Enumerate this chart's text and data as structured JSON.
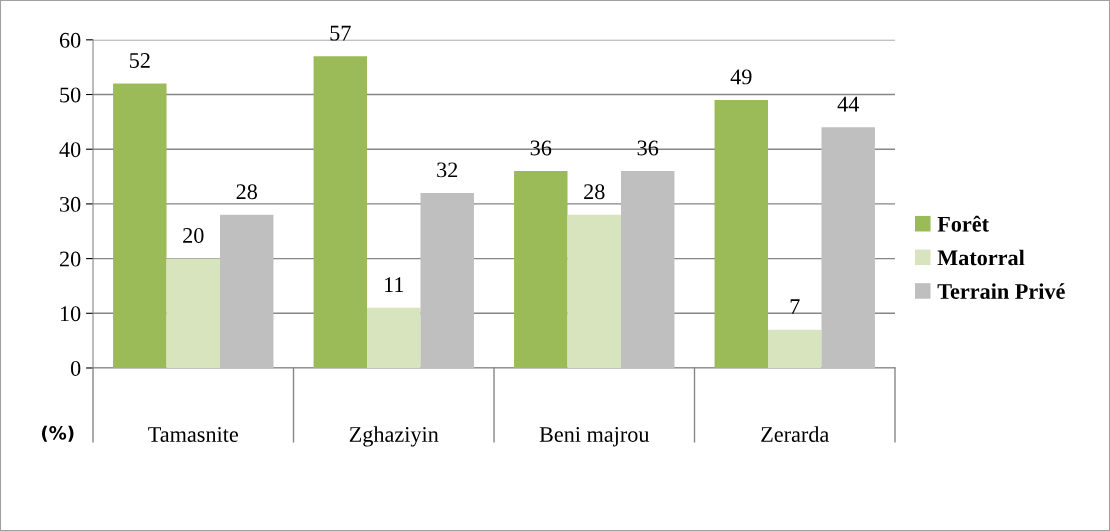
{
  "chart_data": {
    "type": "bar",
    "ylabel": "(%)",
    "categories": [
      "Tamasnite",
      "Zghaziyin",
      "Beni majrou",
      "Zerarda"
    ],
    "series": [
      {
        "name": "Forêt",
        "color": "#9bbb59",
        "values": [
          52,
          57,
          36,
          49
        ]
      },
      {
        "name": "Matorral",
        "color": "#d7e4bd",
        "values": [
          20,
          11,
          28,
          7
        ]
      },
      {
        "name": "Terrain Privé",
        "color": "#bfbfbf",
        "values": [
          28,
          32,
          36,
          44
        ]
      }
    ],
    "ylim": [
      0,
      60
    ],
    "yticks": [
      0,
      10,
      20,
      30,
      40,
      50,
      60
    ],
    "grid": "y",
    "legend": "right",
    "data_labels": true
  }
}
